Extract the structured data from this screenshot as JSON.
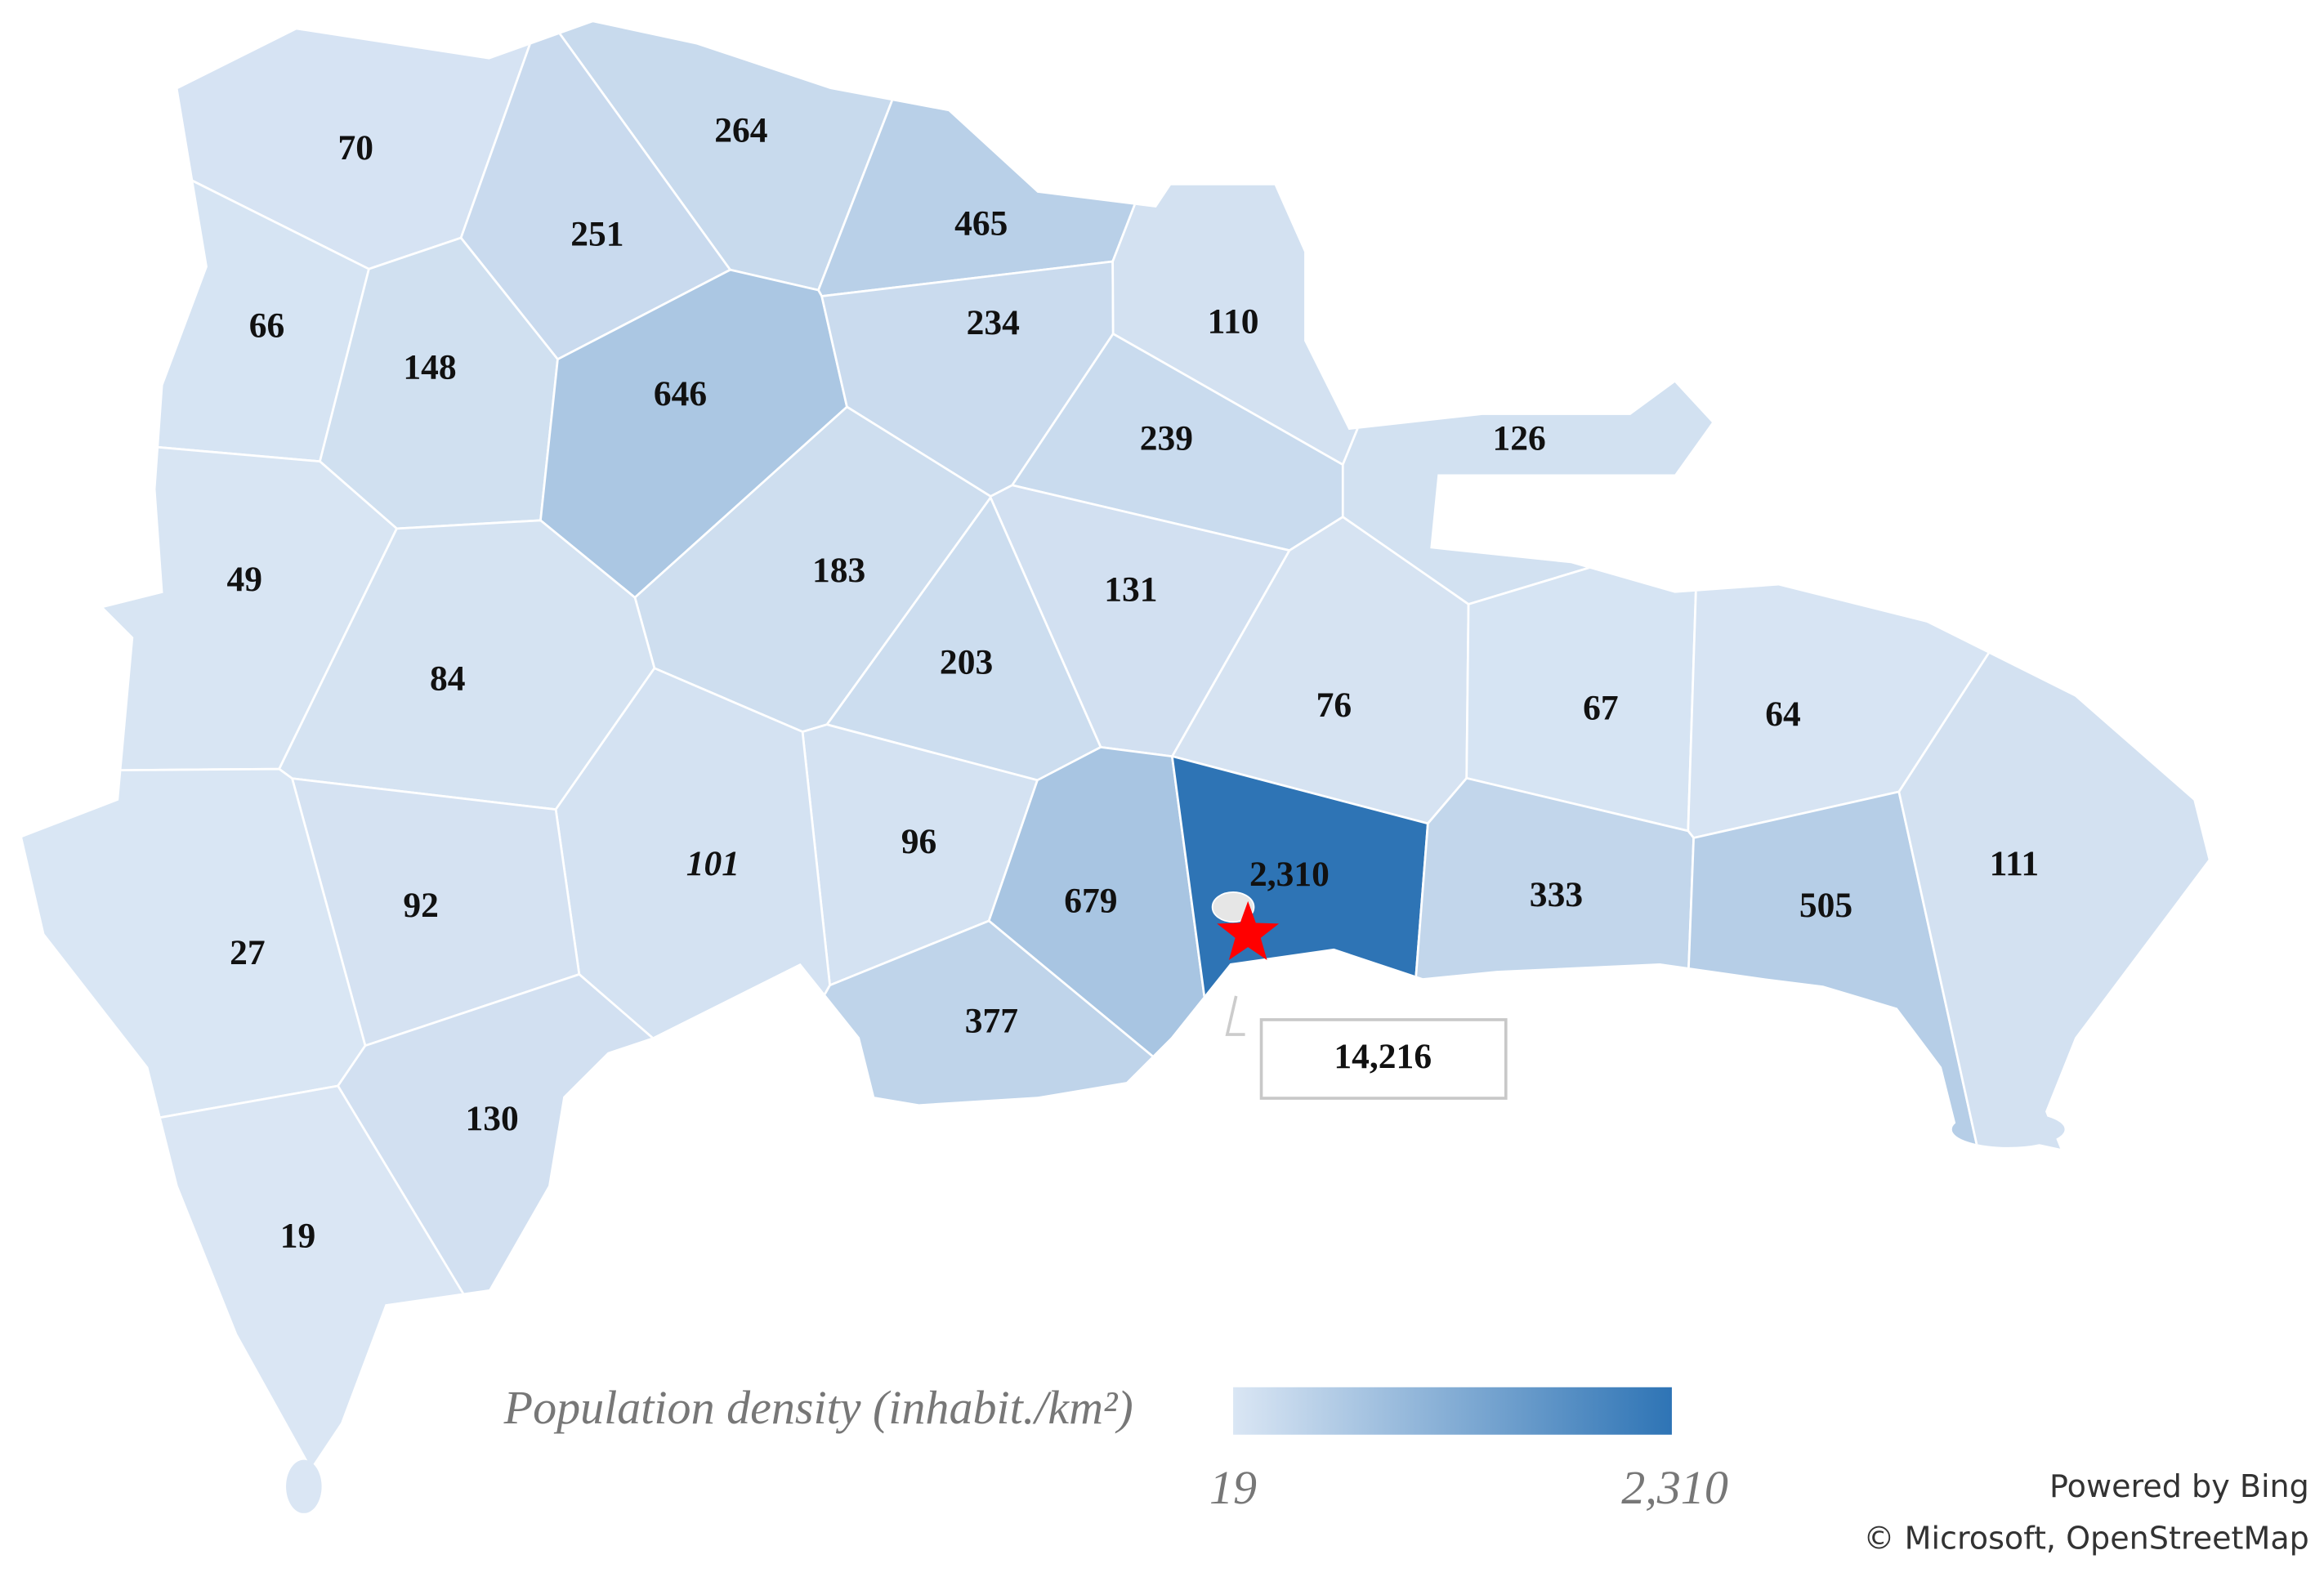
{
  "map": {
    "regions": [
      {
        "value": 70
      },
      {
        "value": 264
      },
      {
        "value": 251
      },
      {
        "value": 465
      },
      {
        "value": 66
      },
      {
        "value": 148
      },
      {
        "value": 646
      },
      {
        "value": 234
      },
      {
        "value": 110
      },
      {
        "value": 239
      },
      {
        "value": 126
      },
      {
        "value": 49
      },
      {
        "value": 183
      },
      {
        "value": 131
      },
      {
        "value": 84
      },
      {
        "value": 203
      },
      {
        "value": 76
      },
      {
        "value": 67
      },
      {
        "value": 64
      },
      {
        "value": 96
      },
      {
        "value": 101
      },
      {
        "value": 92
      },
      {
        "value": 27
      },
      {
        "value": 679
      },
      {
        "value": 2310,
        "label": "2,310"
      },
      {
        "value": 333
      },
      {
        "value": 505
      },
      {
        "value": 111
      },
      {
        "value": 377
      },
      {
        "value": 130
      },
      {
        "value": 19
      }
    ],
    "capital": {
      "value": 14216,
      "label": "14,216"
    },
    "legend": {
      "title": "Population density (inhabit./km²)",
      "min": 19,
      "max": {
        "value": 2310,
        "label": "2,310"
      },
      "colors": [
        "#dae6f4",
        "#2e74b5"
      ]
    },
    "attribution": [
      "Powered by Bing",
      "© Microsoft, OpenStreetMap"
    ]
  }
}
